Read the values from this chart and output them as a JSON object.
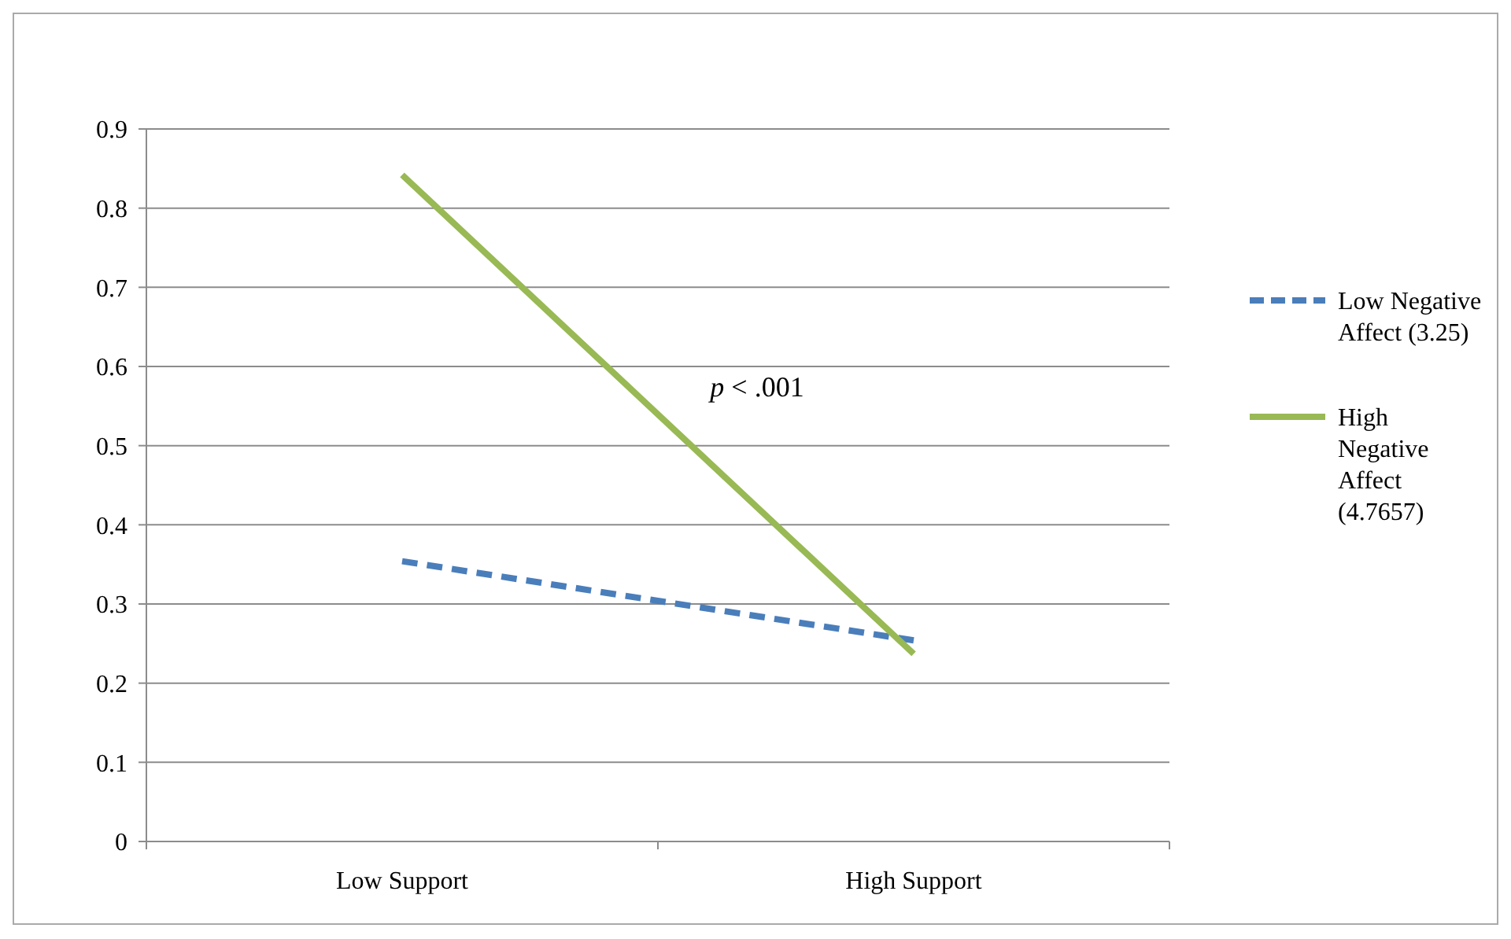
{
  "chart_data": {
    "type": "line",
    "categories": [
      "Low Support",
      "High Support"
    ],
    "series": [
      {
        "name": "Low Negative Affect (3.25)",
        "color": "#4a7ebb",
        "values": [
          0.354,
          0.254
        ],
        "line_style": "dashed"
      },
      {
        "name": "High Negative Affect (4.7657)",
        "color": "#98b954",
        "values": [
          0.842,
          0.237
        ],
        "line_style": "solid"
      }
    ],
    "ylim": [
      0,
      0.9
    ],
    "yticks": [
      0,
      0.1,
      0.2,
      0.3,
      0.4,
      0.5,
      0.6,
      0.7,
      0.8,
      0.9
    ],
    "grid": "y",
    "legend": "right",
    "marker": "none",
    "annotations": [
      "p < .001"
    ]
  }
}
